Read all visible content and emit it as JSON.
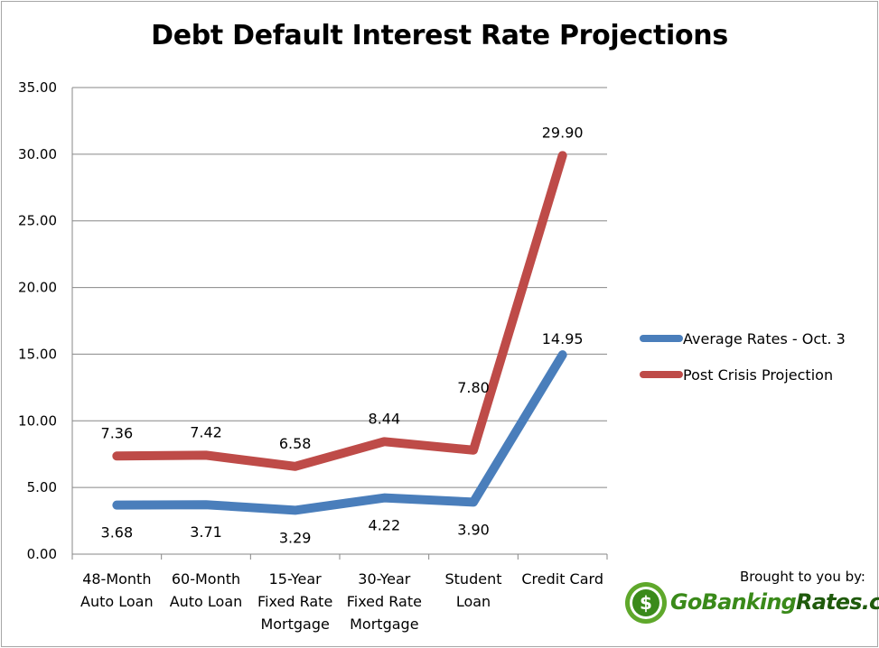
{
  "chart_data": {
    "type": "line",
    "title": "Debt Default Interest Rate Projections",
    "xlabel": "",
    "ylabel": "",
    "ylim": [
      0,
      35
    ],
    "yticks": [
      "0.00",
      "5.00",
      "10.00",
      "15.00",
      "20.00",
      "25.00",
      "30.00",
      "35.00"
    ],
    "ytick_values": [
      0,
      5,
      10,
      15,
      20,
      25,
      30,
      35
    ],
    "grid": true,
    "legend_position": "right",
    "categories": [
      [
        "48-Month",
        "Auto Loan"
      ],
      [
        "60-Month",
        "Auto Loan"
      ],
      [
        "15-Year",
        "Fixed Rate",
        "Mortgage"
      ],
      [
        "30-Year",
        "Fixed Rate",
        "Mortgage"
      ],
      [
        "Student",
        "Loan"
      ],
      [
        "Credit Card"
      ]
    ],
    "series": [
      {
        "name": "Average Rates - Oct. 3",
        "color": "#4a7ebb",
        "values": [
          3.68,
          3.71,
          3.29,
          4.22,
          3.9,
          14.95
        ],
        "labels": [
          "3.68",
          "3.71",
          "3.29",
          "4.22",
          "3.90",
          "14.95"
        ]
      },
      {
        "name": "Post Crisis Projection",
        "color": "#be4b48",
        "values": [
          7.36,
          7.42,
          6.58,
          8.44,
          7.8,
          29.9
        ],
        "labels": [
          "7.36",
          "7.42",
          "6.58",
          "8.44",
          "7.80",
          "29.90"
        ]
      }
    ]
  },
  "branding": {
    "brought_by": "Brought to you by:",
    "logo_text_light": "GoBanking",
    "logo_text_dark": "Rates.com",
    "logo_symbol": "$"
  }
}
